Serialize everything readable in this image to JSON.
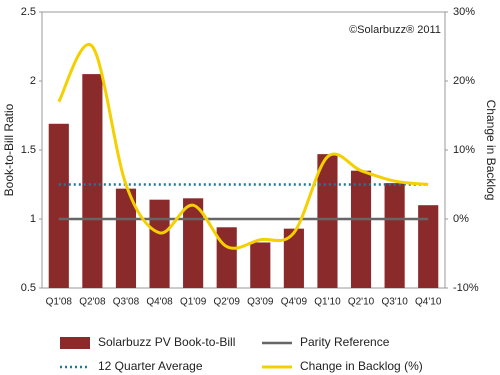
{
  "chart_data": {
    "type": "bar",
    "annotation": "©Solarbuzz® 2011",
    "y_label": "Book-to-Bill Ratio",
    "y2_label": "Change in Backlog",
    "categories": [
      "Q1'08",
      "Q2'08",
      "Q3'08",
      "Q4'08",
      "Q1'09",
      "Q2'09",
      "Q3'09",
      "Q4'09",
      "Q1'10",
      "Q2'10",
      "Q3'10",
      "Q4'10"
    ],
    "series": [
      {
        "name": "Solarbuzz PV Book-to-Bill",
        "type": "bar",
        "color": "#8b2a2a",
        "values": [
          1.69,
          2.05,
          1.22,
          1.14,
          1.15,
          0.94,
          0.83,
          0.93,
          1.47,
          1.35,
          1.26,
          1.1
        ]
      },
      {
        "name": "Parity Reference",
        "type": "line",
        "style": "solid",
        "color": "#666666",
        "values": [
          1,
          1,
          1,
          1,
          1,
          1,
          1,
          1,
          1,
          1,
          1,
          1
        ]
      },
      {
        "name": "12 Quarter Average",
        "type": "line",
        "style": "dotted",
        "color": "#1a7a9a",
        "values": [
          1.25,
          1.25,
          1.25,
          1.25,
          1.25,
          1.25,
          1.25,
          1.25,
          1.25,
          1.25,
          1.25,
          1.25
        ]
      },
      {
        "name": "Change in Backlog (%)",
        "type": "line",
        "style": "smooth",
        "axis": "y2",
        "color": "#f5d000",
        "values": [
          17,
          25,
          5,
          -2,
          2,
          -4,
          -3,
          -2,
          9,
          7,
          5.5,
          5
        ]
      }
    ],
    "ylim": [
      0.5,
      2.5
    ],
    "yticks": [
      0.5,
      1,
      1.5,
      2,
      2.5
    ],
    "y2lim": [
      -10,
      30
    ],
    "y2ticks": [
      {
        "value": -10,
        "label": "-10%"
      },
      {
        "value": 0,
        "label": "0%"
      },
      {
        "value": 10,
        "label": "10%"
      },
      {
        "value": 20,
        "label": "20%"
      },
      {
        "value": 30,
        "label": "30%"
      }
    ]
  }
}
